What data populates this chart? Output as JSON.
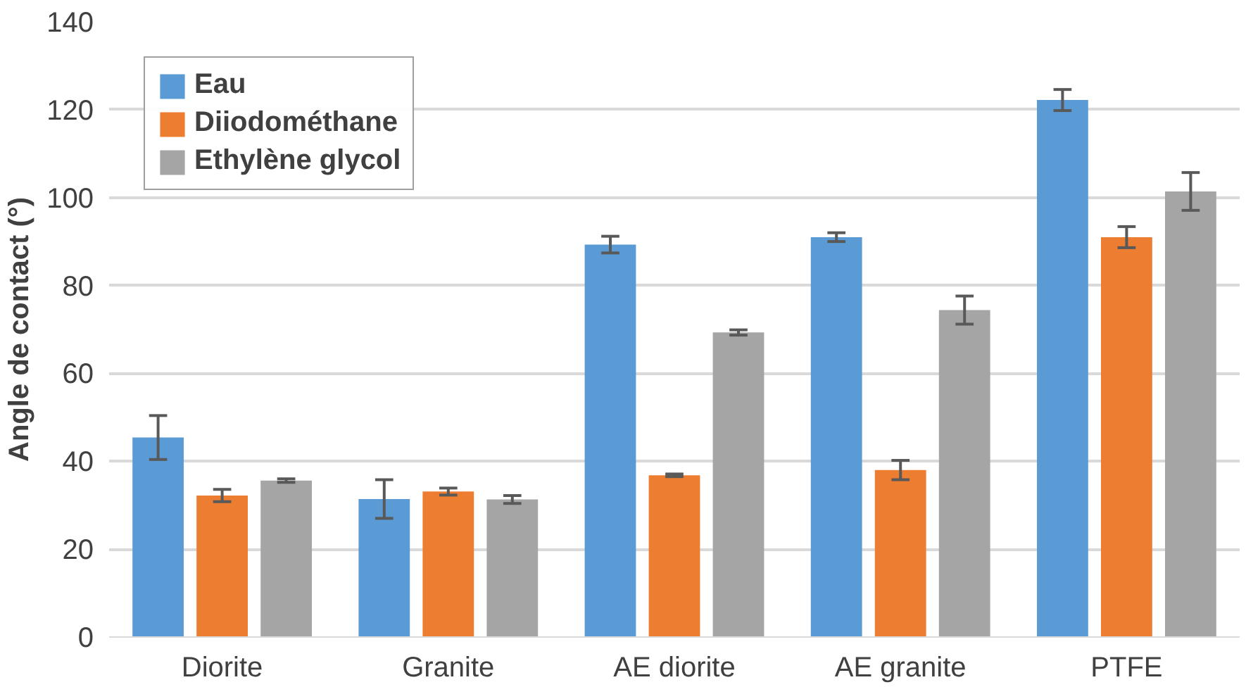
{
  "chart_data": {
    "type": "bar",
    "ylabel": "Angle de contact (°)",
    "categories": [
      "Diorite",
      "Granite",
      "AE diorite",
      "AE granite",
      "PTFE"
    ],
    "series": [
      {
        "name": "Eau",
        "color": "#5b9bd5",
        "values": [
          45.4,
          31.4,
          89.3,
          91.0,
          122.2
        ],
        "errors": [
          5,
          4.4,
          1.9,
          1,
          2.4
        ]
      },
      {
        "name": "Diiodométhane",
        "color": "#ed7d31",
        "values": [
          32.2,
          33.1,
          36.8,
          38.0,
          91.0
        ],
        "errors": [
          1.4,
          0.8,
          0.3,
          2.2,
          2.4
        ]
      },
      {
        "name": "Ethylène glycol",
        "color": "#a5a5a5",
        "values": [
          35.6,
          31.3,
          69.3,
          74.4,
          101.4
        ],
        "errors": [
          0.4,
          0.9,
          0.6,
          3.2,
          4.3
        ]
      }
    ],
    "ylim": [
      0,
      140
    ],
    "yticks": [
      0,
      20,
      40,
      60,
      80,
      100,
      120,
      140
    ],
    "grid": "y",
    "legend": "top left"
  }
}
